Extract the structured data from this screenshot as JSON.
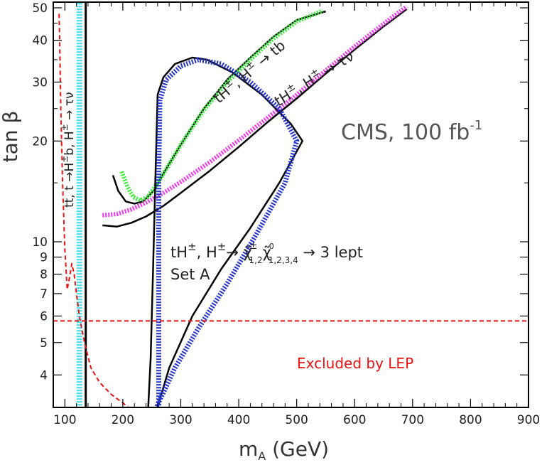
{
  "chart_data": {
    "type": "line",
    "title": "CMS, 100 fb",
    "title_sup": "-1",
    "xlabel": "m",
    "xlabel_sub": "A",
    "xlabel_unit": " (GeV)",
    "ylabel": "tan β",
    "xlim": [
      80,
      900
    ],
    "ylim": [
      3.2,
      52
    ],
    "yscale": "log",
    "xticks": [
      100,
      200,
      300,
      400,
      500,
      600,
      700,
      800,
      900
    ],
    "yticks": [
      4,
      5,
      6,
      7,
      8,
      9,
      10,
      20,
      30,
      40,
      50
    ],
    "grid": false,
    "colors": {
      "black": "#000000",
      "green": "#33ee33",
      "magenta": "#ee33ee",
      "blue": "#2233cc",
      "cyan": "#44d8e8",
      "red": "#ee1111"
    },
    "annotations": {
      "tb": {
        "p1": "tH",
        "p2": ", H",
        "p3": " → tb",
        "pm": "±"
      },
      "taunu": {
        "p1": "tH",
        "p2": ", H",
        "p3": " → τν",
        "pm": "±"
      },
      "tt": {
        "p1": "tt, t →H",
        "p2": "b, H",
        "p3": " → τν",
        "pm": "±"
      },
      "chi": {
        "p1": "tH",
        "p2": ", H",
        "p3": "→ ",
        "chi1": "χ̃",
        "chi1_sup": "±",
        "chi1_sub": "1,2",
        "chi2": "χ̃",
        "chi2_sup": "0",
        "chi2_sub": "1,2,3,4",
        "p4": " → 3 lept",
        "pm": "±"
      },
      "setA": "Set A",
      "lep": "Excluded by LEP"
    },
    "series": [
      {
        "key": "tb_black",
        "color": "black",
        "style": "solid",
        "width": 2.5,
        "x": [
          183,
          192,
          205,
          220,
          235,
          255,
          270,
          300,
          340,
          380,
          420,
          460,
          500,
          550
        ],
        "y": [
          15.8,
          14.2,
          13.2,
          13.0,
          13.2,
          14.3,
          16.0,
          19.5,
          25.0,
          30.5,
          35.5,
          41.0,
          46.0,
          48.8
        ]
      },
      {
        "key": "tb_green",
        "color": "green",
        "style": "dotted",
        "width": 6,
        "x": [
          198,
          208,
          218,
          230,
          243,
          258,
          275,
          300,
          340,
          380,
          420,
          460,
          500,
          545
        ],
        "y": [
          16.2,
          14.6,
          13.6,
          13.3,
          13.6,
          14.8,
          16.5,
          19.5,
          24.8,
          30.0,
          35.0,
          40.5,
          45.5,
          49.0
        ]
      },
      {
        "key": "taunu_black",
        "color": "black",
        "style": "solid",
        "width": 2.5,
        "x": [
          165,
          190,
          215,
          240,
          270,
          300,
          350,
          400,
          450,
          500,
          550,
          600,
          650,
          690
        ],
        "y": [
          11.2,
          11.1,
          11.4,
          11.9,
          12.8,
          14.0,
          16.3,
          19.2,
          22.8,
          26.8,
          31.8,
          37.5,
          44.0,
          49.6
        ]
      },
      {
        "key": "taunu_magenta",
        "color": "magenta",
        "style": "dotted",
        "width": 6,
        "x": [
          165,
          190,
          215,
          240,
          270,
          300,
          350,
          400,
          450,
          500,
          550,
          600,
          650,
          690
        ],
        "y": [
          12.0,
          12.1,
          12.5,
          13.1,
          14.0,
          15.1,
          17.3,
          20.1,
          23.5,
          27.5,
          32.5,
          38.3,
          44.8,
          50.5
        ]
      },
      {
        "key": "chi_black",
        "color": "black",
        "style": "solid",
        "width": 2.5,
        "x": [
          243,
          248,
          252,
          256,
          260,
          270,
          290,
          320,
          345,
          390,
          440,
          490,
          510,
          470,
          420,
          370,
          320,
          280,
          255,
          247
        ],
        "y": [
          3.0,
          4.5,
          8.0,
          15.0,
          27.5,
          31.0,
          34.0,
          35.5,
          35.0,
          32.0,
          27.5,
          22.5,
          20.0,
          15.0,
          11.0,
          8.3,
          6.0,
          4.2,
          3.0,
          3.0
        ]
      },
      {
        "key": "chi_blue",
        "color": "blue",
        "style": "dotted",
        "width": 7,
        "x": [
          262,
          262,
          262,
          264,
          275,
          300,
          330,
          370,
          420,
          470,
          500,
          480,
          430,
          380,
          330,
          290,
          265,
          250
        ],
        "y": [
          3.0,
          8.0,
          16.0,
          26.5,
          30.5,
          33.5,
          35.0,
          34.0,
          30.0,
          25.0,
          20.0,
          15.0,
          10.5,
          7.5,
          5.5,
          4.2,
          3.4,
          3.0
        ]
      },
      {
        "key": "vline_black",
        "color": "black",
        "style": "solid",
        "width": 3,
        "x": [
          136,
          136
        ],
        "y": [
          3.0,
          52
        ]
      },
      {
        "key": "vline_cyan",
        "color": "cyan",
        "style": "dotted",
        "width": 8,
        "x": [
          125,
          125
        ],
        "y": [
          3.0,
          52
        ]
      },
      {
        "key": "lep_horizontal",
        "color": "red",
        "style": "dashed",
        "width": 2,
        "x": [
          80,
          900
        ],
        "y": [
          5.8,
          5.8
        ]
      },
      {
        "key": "lep_curve",
        "color": "red",
        "style": "dashed",
        "width": 2,
        "x": [
          90,
          91,
          93,
          96,
          100,
          104,
          108,
          112,
          116,
          120,
          125,
          130,
          135,
          145,
          160,
          180,
          200,
          215
        ],
        "y": [
          48.0,
          40.0,
          25.0,
          15.0,
          9.5,
          7.2,
          7.8,
          8.6,
          8.0,
          7.0,
          6.0,
          5.4,
          4.9,
          4.2,
          3.8,
          3.5,
          3.3,
          3.15
        ]
      }
    ]
  }
}
